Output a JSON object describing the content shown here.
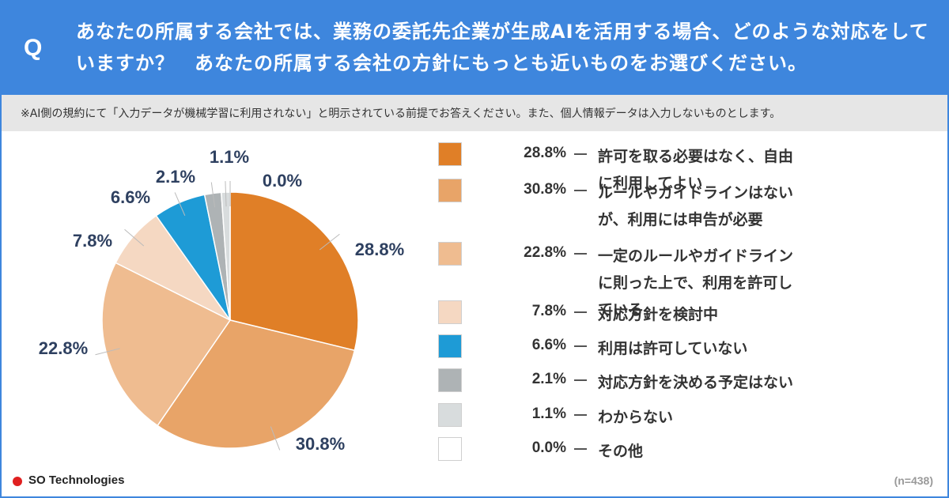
{
  "header": {
    "q_mark": "Q",
    "question": "あなたの所属する会社では、業務の委託先企業が生成AIを活用する場合、どのような対応をしていますか？　あなたの所属する会社の方針にもっとも近いものをお選びください。"
  },
  "note": "※AI側の規約にて「入力データが機械学習に利用されない」と明示されている前提でお答えください。また、個人情報データは入力しないものとします。",
  "chart_data": {
    "type": "pie",
    "unit": "%",
    "slices": [
      {
        "label": "許可を取る必要はなく、自由に利用してよい",
        "value": 28.8,
        "display": "28.8%",
        "color": "#e07f27"
      },
      {
        "label": "ルールやガイドラインはないが、利用には申告が必要",
        "value": 30.8,
        "display": "30.8%",
        "color": "#e8a468"
      },
      {
        "label": "一定のルールやガイドラインに則った上で、利用を許可している",
        "value": 22.8,
        "display": "22.8%",
        "color": "#efbc90"
      },
      {
        "label": "対応方針を検討中",
        "value": 7.8,
        "display": "7.8%",
        "color": "#f5d8c2"
      },
      {
        "label": "利用は許可していない",
        "value": 6.6,
        "display": "6.6%",
        "color": "#1e9bd6"
      },
      {
        "label": "対応方針を決める予定はない",
        "value": 2.1,
        "display": "2.1%",
        "color": "#aeb3b5"
      },
      {
        "label": "わからない",
        "value": 1.1,
        "display": "1.1%",
        "color": "#d8dcdd"
      },
      {
        "label": "その他",
        "value": 0.0,
        "display": "0.0%",
        "color": "#ffffff"
      }
    ],
    "sample_size": "(n=438)"
  },
  "footer": {
    "logo": "SO Technologies",
    "n_label": "(n=438)"
  }
}
